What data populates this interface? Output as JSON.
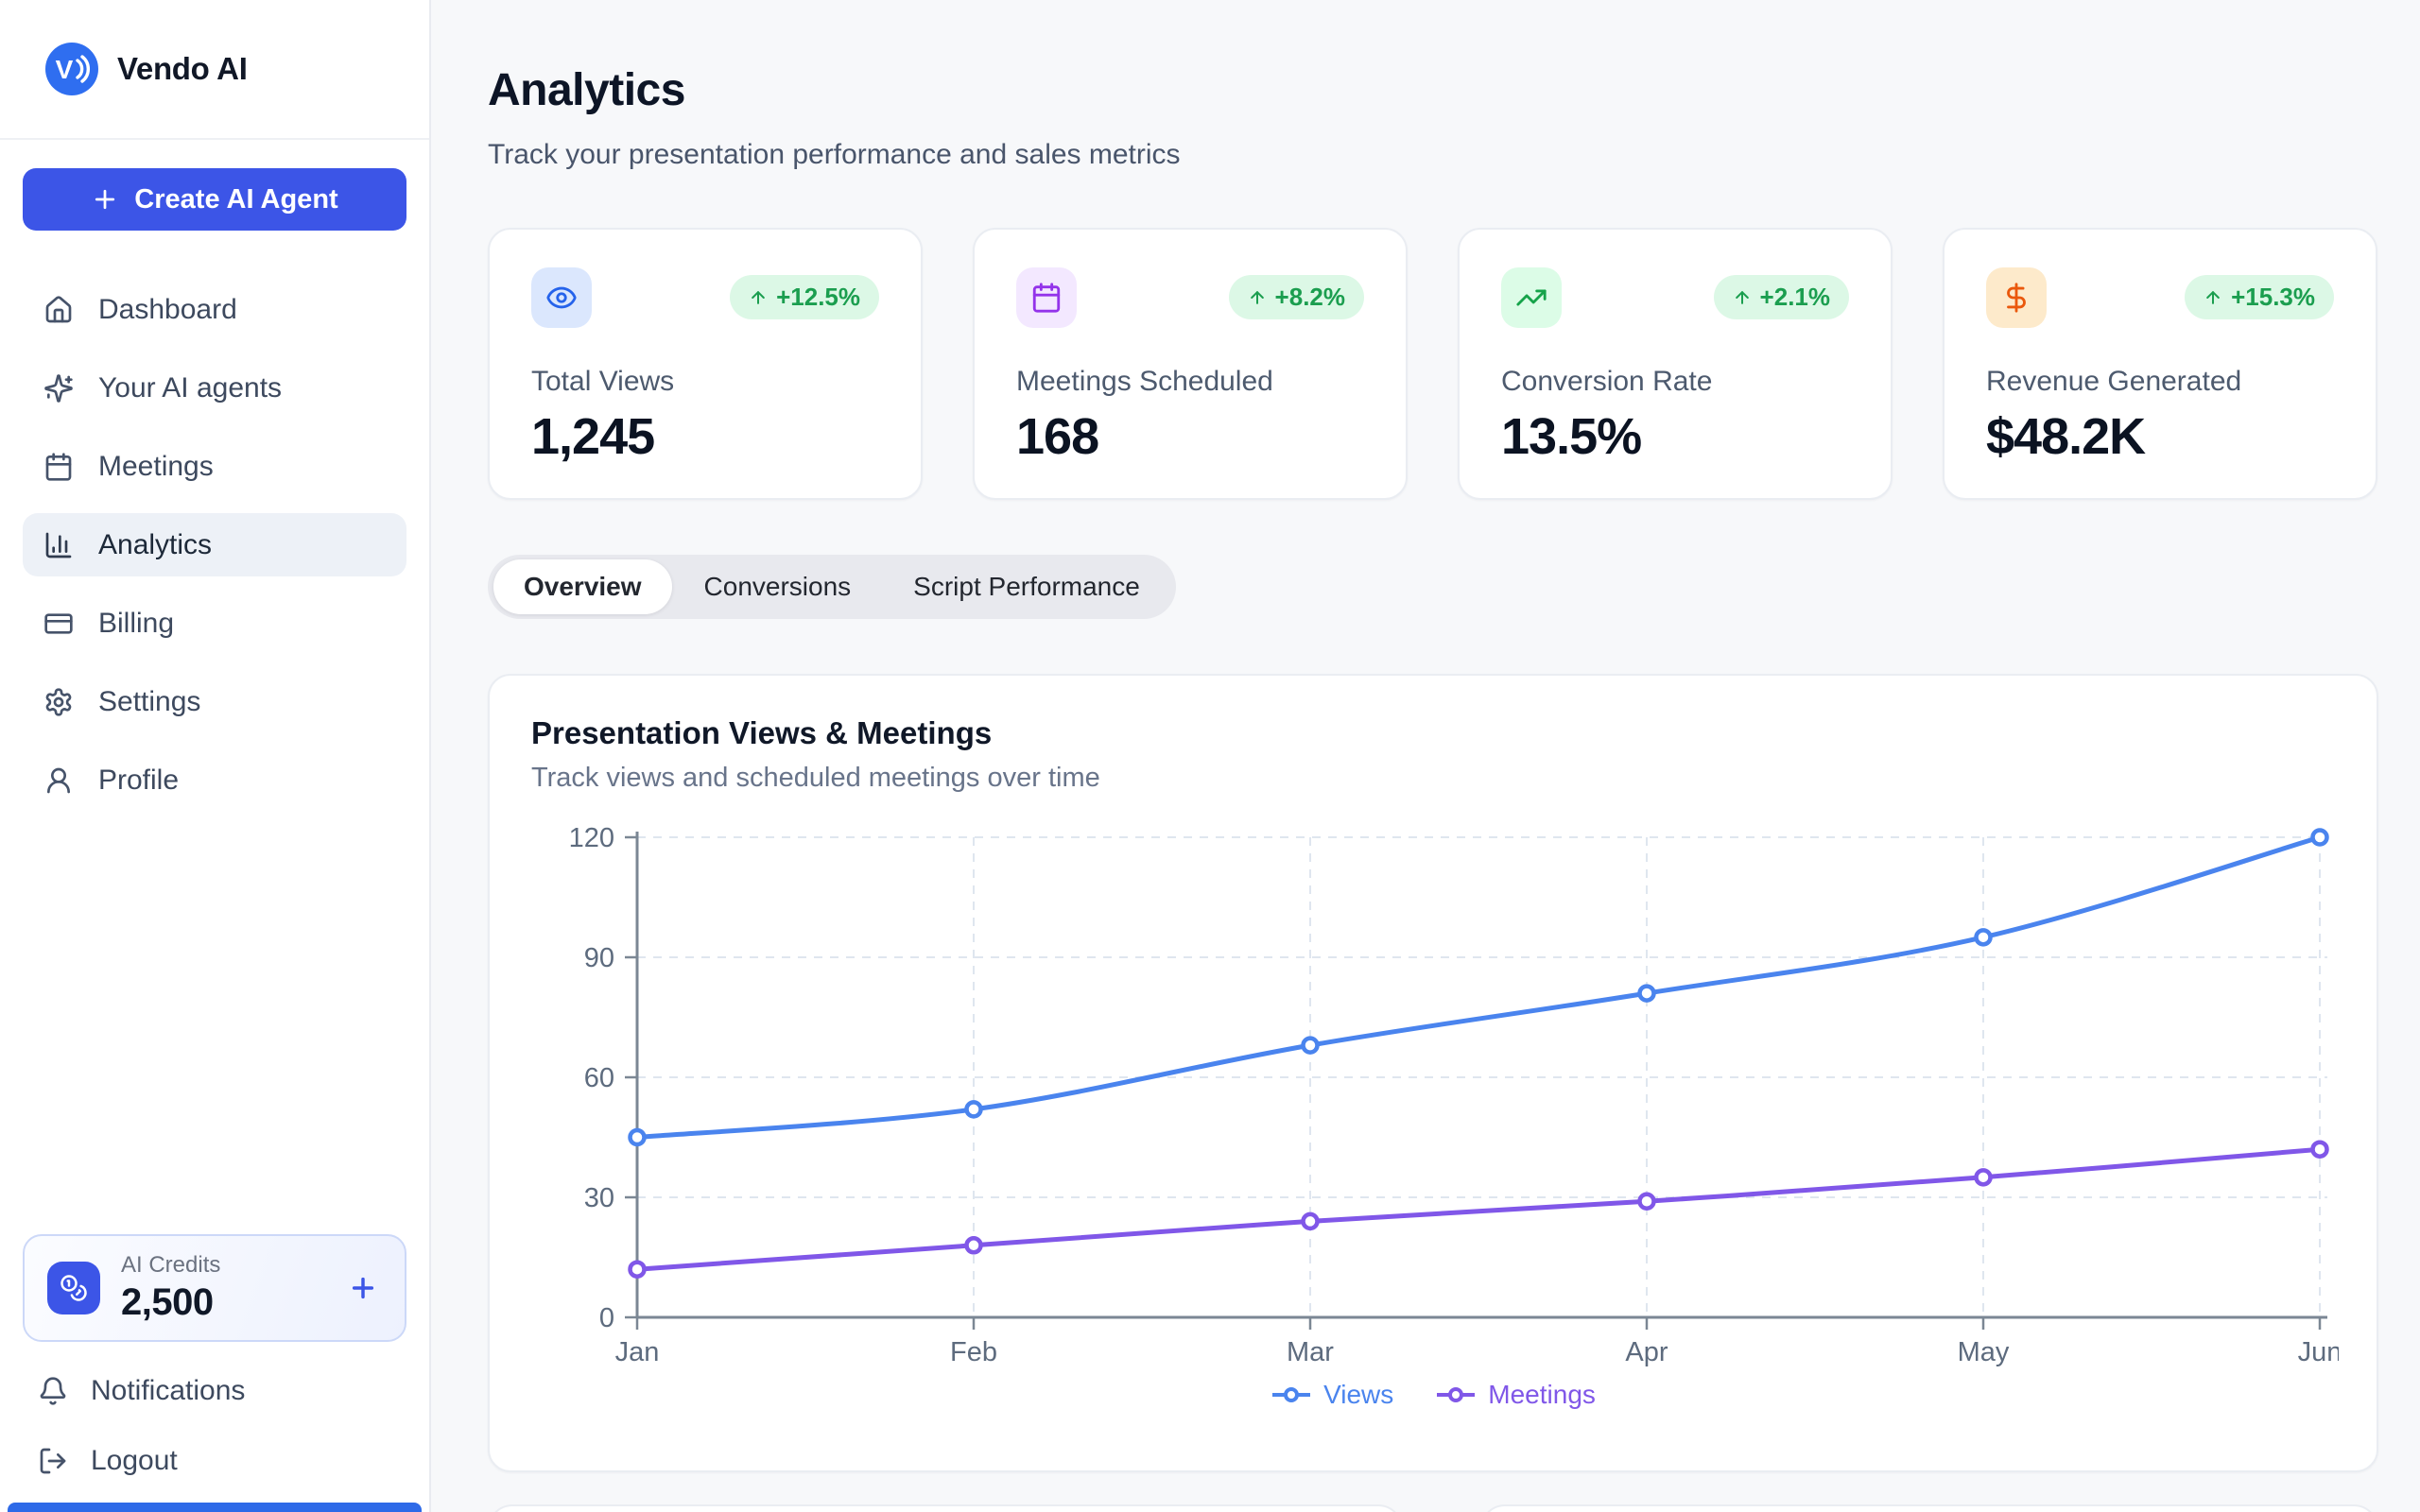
{
  "app": {
    "name": "Vendo AI"
  },
  "theme": {
    "primary_blue": "#3c55e7",
    "logo_blue": "#2f6ef0",
    "page_background": "#f7f8fa",
    "positive_green": "#1b9e4f",
    "positive_green_bg": "#dcf8e6"
  },
  "sidebar": {
    "create_button_label": "Create AI Agent",
    "items": [
      {
        "label": "Dashboard",
        "icon": "home-icon",
        "active": false
      },
      {
        "label": "Your AI agents",
        "icon": "sparkles-icon",
        "active": false
      },
      {
        "label": "Meetings",
        "icon": "calendar-icon",
        "active": false
      },
      {
        "label": "Analytics",
        "icon": "bar-chart-icon",
        "active": true
      },
      {
        "label": "Billing",
        "icon": "credit-card-icon",
        "active": false
      },
      {
        "label": "Settings",
        "icon": "gear-icon",
        "active": false
      },
      {
        "label": "Profile",
        "icon": "user-icon",
        "active": false
      }
    ],
    "credits": {
      "label": "AI Credits",
      "value": "2,500",
      "add_icon": "plus-icon"
    },
    "footer_items": [
      {
        "label": "Notifications",
        "icon": "bell-icon"
      },
      {
        "label": "Logout",
        "icon": "logout-icon"
      }
    ]
  },
  "header": {
    "title": "Analytics",
    "subtitle": "Track your presentation performance and sales metrics"
  },
  "stats": {
    "cards": [
      {
        "label": "Total Views",
        "value": "1,245",
        "change": "+12.5%",
        "icon": "eye-icon",
        "accent_color": "#2563eb",
        "tile_color": "#dbe7fd"
      },
      {
        "label": "Meetings Scheduled",
        "value": "168",
        "change": "+8.2%",
        "icon": "calendar-icon",
        "accent_color": "#9333ea",
        "tile_color": "#f3e8ff"
      },
      {
        "label": "Conversion Rate",
        "value": "13.5%",
        "change": "+2.1%",
        "icon": "trending-up-icon",
        "accent_color": "#16a34a",
        "tile_color": "#dcfce7"
      },
      {
        "label": "Revenue Generated",
        "value": "$48.2K",
        "change": "+15.3%",
        "icon": "dollar-icon",
        "accent_color": "#ea580c",
        "tile_color": "#fdeacb"
      }
    ]
  },
  "tabs": {
    "items": [
      {
        "label": "Overview",
        "active": true
      },
      {
        "label": "Conversions",
        "active": false
      },
      {
        "label": "Script Performance",
        "active": false
      }
    ]
  },
  "chart_card": {
    "title": "Presentation Views & Meetings",
    "subtitle": "Track views and scheduled meetings over time"
  },
  "chart_data": {
    "type": "line",
    "title": "Presentation Views & Meetings",
    "categories": [
      "Jan",
      "Feb",
      "Mar",
      "Apr",
      "May",
      "Jun"
    ],
    "series": [
      {
        "name": "Views",
        "color": "#4a84ee",
        "values": [
          45,
          52,
          68,
          81,
          95,
          120
        ]
      },
      {
        "name": "Meetings",
        "color": "#8057e8",
        "values": [
          12,
          18,
          24,
          29,
          35,
          42
        ]
      }
    ],
    "xlabel": "",
    "ylabel": "",
    "ylim": [
      0,
      120
    ],
    "yticks": [
      0,
      30,
      60,
      90,
      120
    ],
    "grid": "dashed",
    "legend_position": "bottom"
  }
}
